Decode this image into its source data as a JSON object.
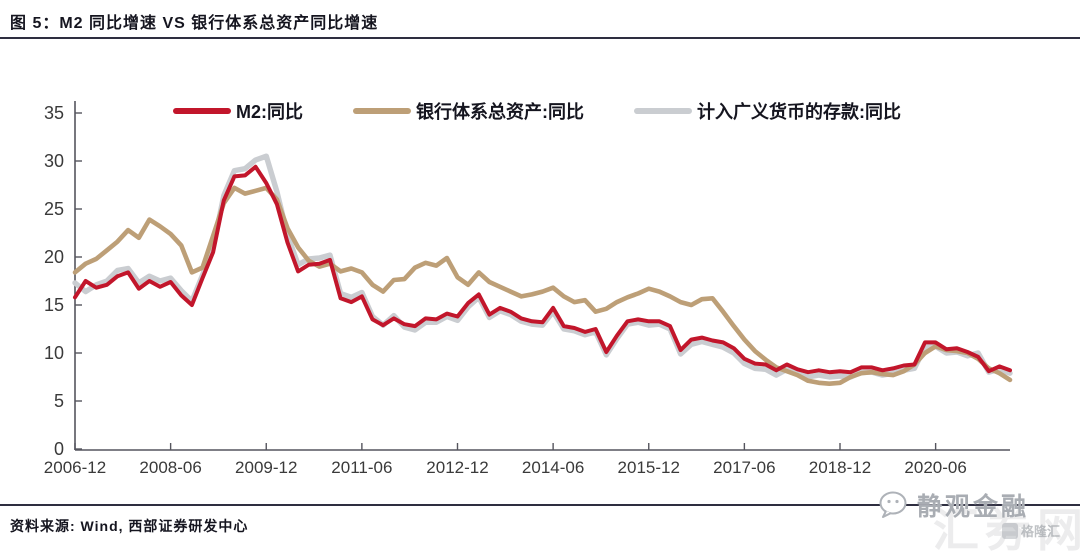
{
  "title": "图 5：M2 同比增速 VS 银行体系总资产同比增速",
  "source": "资料来源: Wind, 西部证券研发中心",
  "watermark": {
    "brand": "静观金融",
    "site": "汇券网",
    "badge": "格隆汇"
  },
  "colors": {
    "m2": "#C2162B",
    "bank_assets": "#BD9F77",
    "deposits": "#CACDD1",
    "axis": "#55555e",
    "tick_text": "#3a3a3a",
    "heading_text": "#15151f"
  },
  "chart_data": {
    "type": "line",
    "title": "M2 同比增速 VS 银行体系总资产同比增速",
    "xlabel": "",
    "ylabel": "",
    "ylim": [
      0,
      35
    ],
    "y_ticks": [
      0,
      5,
      10,
      15,
      20,
      25,
      30,
      35
    ],
    "grid": false,
    "legend_position": "top",
    "x_start": "2006-12",
    "x_end": "2021-08",
    "x_interval_months": 2,
    "x_tick_labels": [
      "2006-12",
      "2008-06",
      "2009-12",
      "2011-06",
      "2012-12",
      "2014-06",
      "2015-12",
      "2017-06",
      "2018-12",
      "2020-06"
    ],
    "x_tick_indices": [
      0,
      9,
      18,
      27,
      36,
      45,
      54,
      63,
      72,
      81
    ],
    "series": [
      {
        "name": "M2:同比",
        "color": "#C2162B",
        "values": [
          15.8,
          17.5,
          16.8,
          17.1,
          18.0,
          18.4,
          16.7,
          17.5,
          16.9,
          17.4,
          16.0,
          15.0,
          17.8,
          20.5,
          25.9,
          28.4,
          28.5,
          29.4,
          27.7,
          25.5,
          21.5,
          18.5,
          19.2,
          19.3,
          19.7,
          15.7,
          15.3,
          15.9,
          13.5,
          12.9,
          13.6,
          13.0,
          12.8,
          13.6,
          13.5,
          14.1,
          13.8,
          15.2,
          16.1,
          14.0,
          14.7,
          14.3,
          13.6,
          13.3,
          13.2,
          14.7,
          12.8,
          12.6,
          12.2,
          12.5,
          10.1,
          11.8,
          13.3,
          13.5,
          13.3,
          13.3,
          12.8,
          10.3,
          11.4,
          11.6,
          11.3,
          11.1,
          10.5,
          9.4,
          8.9,
          8.8,
          8.2,
          8.8,
          8.3,
          8.0,
          8.2,
          8.0,
          8.1,
          8.0,
          8.5,
          8.5,
          8.2,
          8.4,
          8.7,
          8.8,
          11.1,
          11.1,
          10.4,
          10.5,
          10.1,
          9.6,
          8.1,
          8.6,
          8.2
        ]
      },
      {
        "name": "银行体系总资产:同比",
        "color": "#BD9F77",
        "values": [
          18.4,
          19.3,
          19.8,
          20.7,
          21.6,
          22.8,
          22.0,
          23.9,
          23.2,
          22.4,
          21.2,
          18.4,
          18.9,
          22.2,
          25.6,
          27.2,
          26.6,
          26.9,
          27.2,
          26.0,
          23.0,
          21.0,
          19.6,
          19.0,
          19.3,
          18.5,
          18.8,
          18.4,
          17.1,
          16.4,
          17.6,
          17.7,
          18.9,
          19.4,
          19.1,
          19.9,
          17.9,
          17.1,
          18.4,
          17.4,
          16.9,
          16.4,
          15.9,
          16.1,
          16.4,
          16.8,
          15.9,
          15.3,
          15.5,
          14.3,
          14.6,
          15.3,
          15.8,
          16.2,
          16.7,
          16.4,
          15.9,
          15.3,
          15.0,
          15.6,
          15.7,
          14.3,
          12.8,
          11.4,
          10.2,
          9.3,
          8.5,
          8.1,
          7.7,
          7.1,
          6.9,
          6.8,
          6.9,
          7.5,
          7.9,
          8.0,
          7.8,
          7.7,
          8.1,
          8.8,
          10.0,
          10.7,
          10.3,
          10.2,
          10.0,
          9.4,
          8.4,
          7.9,
          7.2
        ]
      },
      {
        "name": "计入广义货币的存款:同比",
        "color": "#CACDD1",
        "values": [
          17.3,
          16.4,
          17.1,
          17.5,
          18.6,
          18.8,
          17.3,
          18.0,
          17.5,
          17.8,
          16.5,
          15.4,
          18.1,
          21.0,
          26.4,
          29.0,
          29.2,
          30.1,
          30.5,
          26.8,
          22.3,
          19.2,
          19.8,
          19.9,
          20.2,
          16.2,
          15.8,
          16.3,
          13.8,
          12.9,
          13.9,
          12.7,
          12.4,
          13.2,
          13.2,
          13.8,
          13.4,
          14.8,
          15.8,
          13.7,
          14.4,
          14.0,
          13.3,
          13.0,
          12.9,
          14.3,
          12.5,
          12.3,
          11.9,
          12.2,
          9.8,
          11.5,
          13.0,
          13.2,
          12.9,
          13.0,
          12.5,
          9.9,
          10.9,
          11.2,
          10.9,
          10.6,
          10.0,
          8.9,
          8.4,
          8.3,
          7.7,
          8.3,
          7.8,
          7.5,
          7.7,
          7.5,
          7.6,
          7.5,
          8.0,
          8.0,
          7.7,
          7.9,
          8.2,
          8.4,
          10.6,
          10.7,
          10.0,
          10.1,
          9.7,
          10.0,
          8.0,
          8.3,
          7.9
        ]
      }
    ]
  }
}
